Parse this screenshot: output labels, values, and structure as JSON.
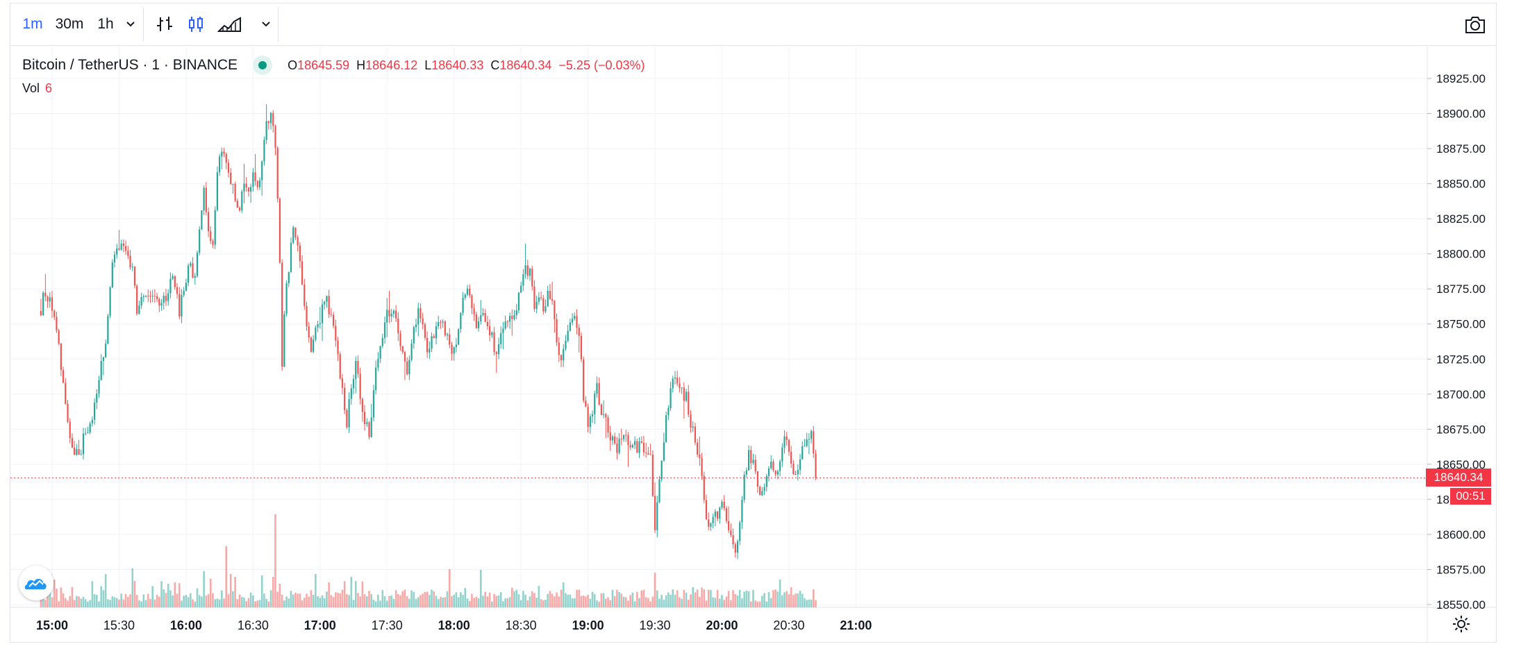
{
  "toolbar": {
    "intervals": [
      {
        "label": "1m",
        "active": true
      },
      {
        "label": "30m",
        "active": false
      },
      {
        "label": "1h",
        "active": false
      }
    ],
    "icons": [
      "chevron-down-icon",
      "bar-chart-icon",
      "candlestick-icon",
      "area-chart-icon",
      "chevron-down-icon",
      "camera-icon"
    ]
  },
  "legend": {
    "symbol": "Bitcoin / TetherUS · 1 · BINANCE",
    "open_label": "O",
    "open": "18645.59",
    "high_label": "H",
    "high": "18646.12",
    "low_label": "L",
    "low": "18640.33",
    "close_label": "C",
    "close": "18640.34",
    "change": "−5.25 (−0.03%)",
    "volume_label": "Vol",
    "volume": "6"
  },
  "price_tag": "18640.34",
  "countdown": "00:51",
  "colors": {
    "up": "#26a69a",
    "down": "#ef5350",
    "accent": "#2962ff",
    "grid": "#f0f3fa"
  },
  "chart_data": {
    "type": "candlestick",
    "title": "Bitcoin / TetherUS · 1 · BINANCE",
    "x_tick_labels": [
      "15:00",
      "15:30",
      "16:00",
      "16:30",
      "17:00",
      "17:30",
      "18:00",
      "18:30",
      "19:00",
      "19:30",
      "20:00",
      "20:30",
      "21:00"
    ],
    "x_tick_minutes": [
      0,
      30,
      60,
      90,
      120,
      150,
      180,
      210,
      240,
      270,
      300,
      330,
      360
    ],
    "bold_ticks": [
      "15:00",
      "16:00",
      "17:00",
      "18:00",
      "19:00",
      "20:00",
      "21:00"
    ],
    "y_tick_labels": [
      "18925.00",
      "18900.00",
      "18875.00",
      "18850.00",
      "18825.00",
      "18800.00",
      "18775.00",
      "18750.00",
      "18725.00",
      "18700.00",
      "18675.00",
      "18650.00",
      "18625.00",
      "18600.00",
      "18575.00",
      "18550.00"
    ],
    "ylim": [
      18545,
      18935
    ],
    "interval": "1m",
    "anchors": [
      [
        -5,
        18760
      ],
      [
        -4,
        18770
      ],
      [
        -1,
        18765
      ],
      [
        3,
        18735
      ],
      [
        6,
        18690
      ],
      [
        9,
        18660
      ],
      [
        12,
        18655
      ],
      [
        15,
        18675
      ],
      [
        18,
        18680
      ],
      [
        21,
        18710
      ],
      [
        24,
        18740
      ],
      [
        27,
        18790
      ],
      [
        30,
        18805
      ],
      [
        33,
        18800
      ],
      [
        36,
        18790
      ],
      [
        38,
        18760
      ],
      [
        40,
        18770
      ],
      [
        45,
        18775
      ],
      [
        48,
        18760
      ],
      [
        51,
        18770
      ],
      [
        54,
        18785
      ],
      [
        57,
        18760
      ],
      [
        60,
        18780
      ],
      [
        62,
        18795
      ],
      [
        64,
        18780
      ],
      [
        66,
        18820
      ],
      [
        68,
        18845
      ],
      [
        70,
        18815
      ],
      [
        72,
        18810
      ],
      [
        74,
        18860
      ],
      [
        76,
        18875
      ],
      [
        78,
        18865
      ],
      [
        80,
        18850
      ],
      [
        82,
        18840
      ],
      [
        84,
        18830
      ],
      [
        86,
        18850
      ],
      [
        88,
        18840
      ],
      [
        90,
        18855
      ],
      [
        92,
        18845
      ],
      [
        94,
        18865
      ],
      [
        96,
        18895
      ],
      [
        98,
        18900
      ],
      [
        100,
        18875
      ],
      [
        101,
        18835
      ],
      [
        102,
        18790
      ],
      [
        103,
        18720
      ],
      [
        104,
        18760
      ],
      [
        106,
        18790
      ],
      [
        108,
        18820
      ],
      [
        110,
        18810
      ],
      [
        112,
        18775
      ],
      [
        114,
        18750
      ],
      [
        116,
        18730
      ],
      [
        118,
        18745
      ],
      [
        121,
        18760
      ],
      [
        123,
        18765
      ],
      [
        126,
        18745
      ],
      [
        128,
        18730
      ],
      [
        130,
        18700
      ],
      [
        132,
        18680
      ],
      [
        134,
        18705
      ],
      [
        136,
        18720
      ],
      [
        138,
        18700
      ],
      [
        140,
        18680
      ],
      [
        142,
        18670
      ],
      [
        144,
        18705
      ],
      [
        146,
        18725
      ],
      [
        149,
        18755
      ],
      [
        152,
        18760
      ],
      [
        155,
        18745
      ],
      [
        157,
        18730
      ],
      [
        159,
        18710
      ],
      [
        161,
        18740
      ],
      [
        164,
        18760
      ],
      [
        166,
        18745
      ],
      [
        168,
        18730
      ],
      [
        171,
        18740
      ],
      [
        174,
        18755
      ],
      [
        177,
        18740
      ],
      [
        180,
        18730
      ],
      [
        182,
        18745
      ],
      [
        184,
        18765
      ],
      [
        186,
        18780
      ],
      [
        188,
        18760
      ],
      [
        190,
        18745
      ],
      [
        193,
        18755
      ],
      [
        196,
        18745
      ],
      [
        199,
        18730
      ],
      [
        202,
        18745
      ],
      [
        205,
        18755
      ],
      [
        208,
        18760
      ],
      [
        210,
        18775
      ],
      [
        212,
        18790
      ],
      [
        214,
        18785
      ],
      [
        216,
        18765
      ],
      [
        218,
        18770
      ],
      [
        220,
        18760
      ],
      [
        222,
        18770
      ],
      [
        224,
        18765
      ],
      [
        226,
        18740
      ],
      [
        228,
        18725
      ],
      [
        230,
        18735
      ],
      [
        232,
        18750
      ],
      [
        234,
        18760
      ],
      [
        235,
        18750
      ],
      [
        236,
        18745
      ],
      [
        238,
        18700
      ],
      [
        240,
        18680
      ],
      [
        242,
        18690
      ],
      [
        244,
        18705
      ],
      [
        246,
        18690
      ],
      [
        248,
        18680
      ],
      [
        250,
        18670
      ],
      [
        252,
        18660
      ],
      [
        254,
        18665
      ],
      [
        256,
        18670
      ],
      [
        258,
        18665
      ],
      [
        260,
        18665
      ],
      [
        262,
        18660
      ],
      [
        264,
        18665
      ],
      [
        266,
        18655
      ],
      [
        268,
        18655
      ],
      [
        270,
        18600
      ],
      [
        271,
        18620
      ],
      [
        272,
        18640
      ],
      [
        274,
        18670
      ],
      [
        276,
        18690
      ],
      [
        278,
        18710
      ],
      [
        280,
        18705
      ],
      [
        282,
        18700
      ],
      [
        284,
        18700
      ],
      [
        286,
        18680
      ],
      [
        288,
        18665
      ],
      [
        290,
        18650
      ],
      [
        292,
        18625
      ],
      [
        294,
        18605
      ],
      [
        296,
        18610
      ],
      [
        298,
        18615
      ],
      [
        300,
        18625
      ],
      [
        302,
        18610
      ],
      [
        304,
        18600
      ],
      [
        306,
        18590
      ],
      [
        308,
        18610
      ],
      [
        310,
        18640
      ],
      [
        312,
        18660
      ],
      [
        314,
        18650
      ],
      [
        316,
        18635
      ],
      [
        318,
        18630
      ],
      [
        320,
        18645
      ],
      [
        322,
        18650
      ],
      [
        324,
        18640
      ],
      [
        326,
        18650
      ],
      [
        328,
        18665
      ],
      [
        330,
        18660
      ],
      [
        332,
        18640
      ],
      [
        334,
        18645
      ],
      [
        336,
        18660
      ],
      [
        338,
        18665
      ],
      [
        340,
        18670
      ],
      [
        341,
        18655
      ],
      [
        342,
        18640
      ]
    ],
    "volume_bursts": {
      "1": 40,
      "24": 48,
      "36": 56,
      "37": 38,
      "52": 34,
      "55": 36,
      "68": 52,
      "71": 41,
      "78": 88,
      "80": 48,
      "82": 44,
      "94": 46,
      "99": 44,
      "100": 134,
      "102": 34,
      "118": 48,
      "124": 36,
      "134": 44,
      "136": 38,
      "178": 55,
      "192": 54,
      "218": 31,
      "229": 36,
      "270": 50,
      "287": 29,
      "326": 40
    },
    "current_price": 18640.34
  }
}
